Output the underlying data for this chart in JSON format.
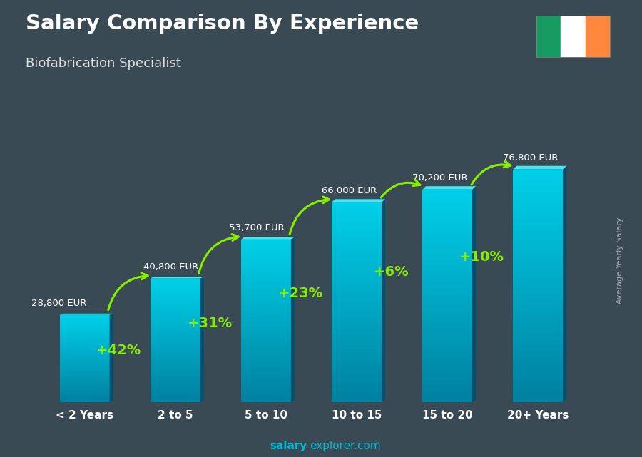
{
  "title": "Salary Comparison By Experience",
  "subtitle": "Biofabrication Specialist",
  "categories": [
    "< 2 Years",
    "2 to 5",
    "5 to 10",
    "10 to 15",
    "15 to 20",
    "20+ Years"
  ],
  "values": [
    28800,
    40800,
    53700,
    66000,
    70200,
    76800
  ],
  "value_labels": [
    "28,800 EUR",
    "40,800 EUR",
    "53,700 EUR",
    "66,000 EUR",
    "70,200 EUR",
    "76,800 EUR"
  ],
  "pct_changes": [
    "+42%",
    "+31%",
    "+23%",
    "+6%",
    "+10%"
  ],
  "bar_color_face": "#00bcd4",
  "bar_color_side": "#006080",
  "bar_color_top_face": "#26e5f5",
  "background_color": "#3a4a55",
  "overlay_color": "#2a3540",
  "title_color": "#ffffff",
  "subtitle_color": "#dddddd",
  "label_color": "#ffffff",
  "pct_color": "#88ee00",
  "arrow_color": "#88ee00",
  "watermark_bold": "salary",
  "watermark_normal": "explorer.com",
  "watermark_color": "#00bcd4",
  "right_label": "Average Yearly Salary",
  "ireland_flag_colors": [
    "#169b62",
    "#ffffff",
    "#ff883e"
  ],
  "ylim": [
    0,
    95000
  ],
  "bar_width": 0.55
}
